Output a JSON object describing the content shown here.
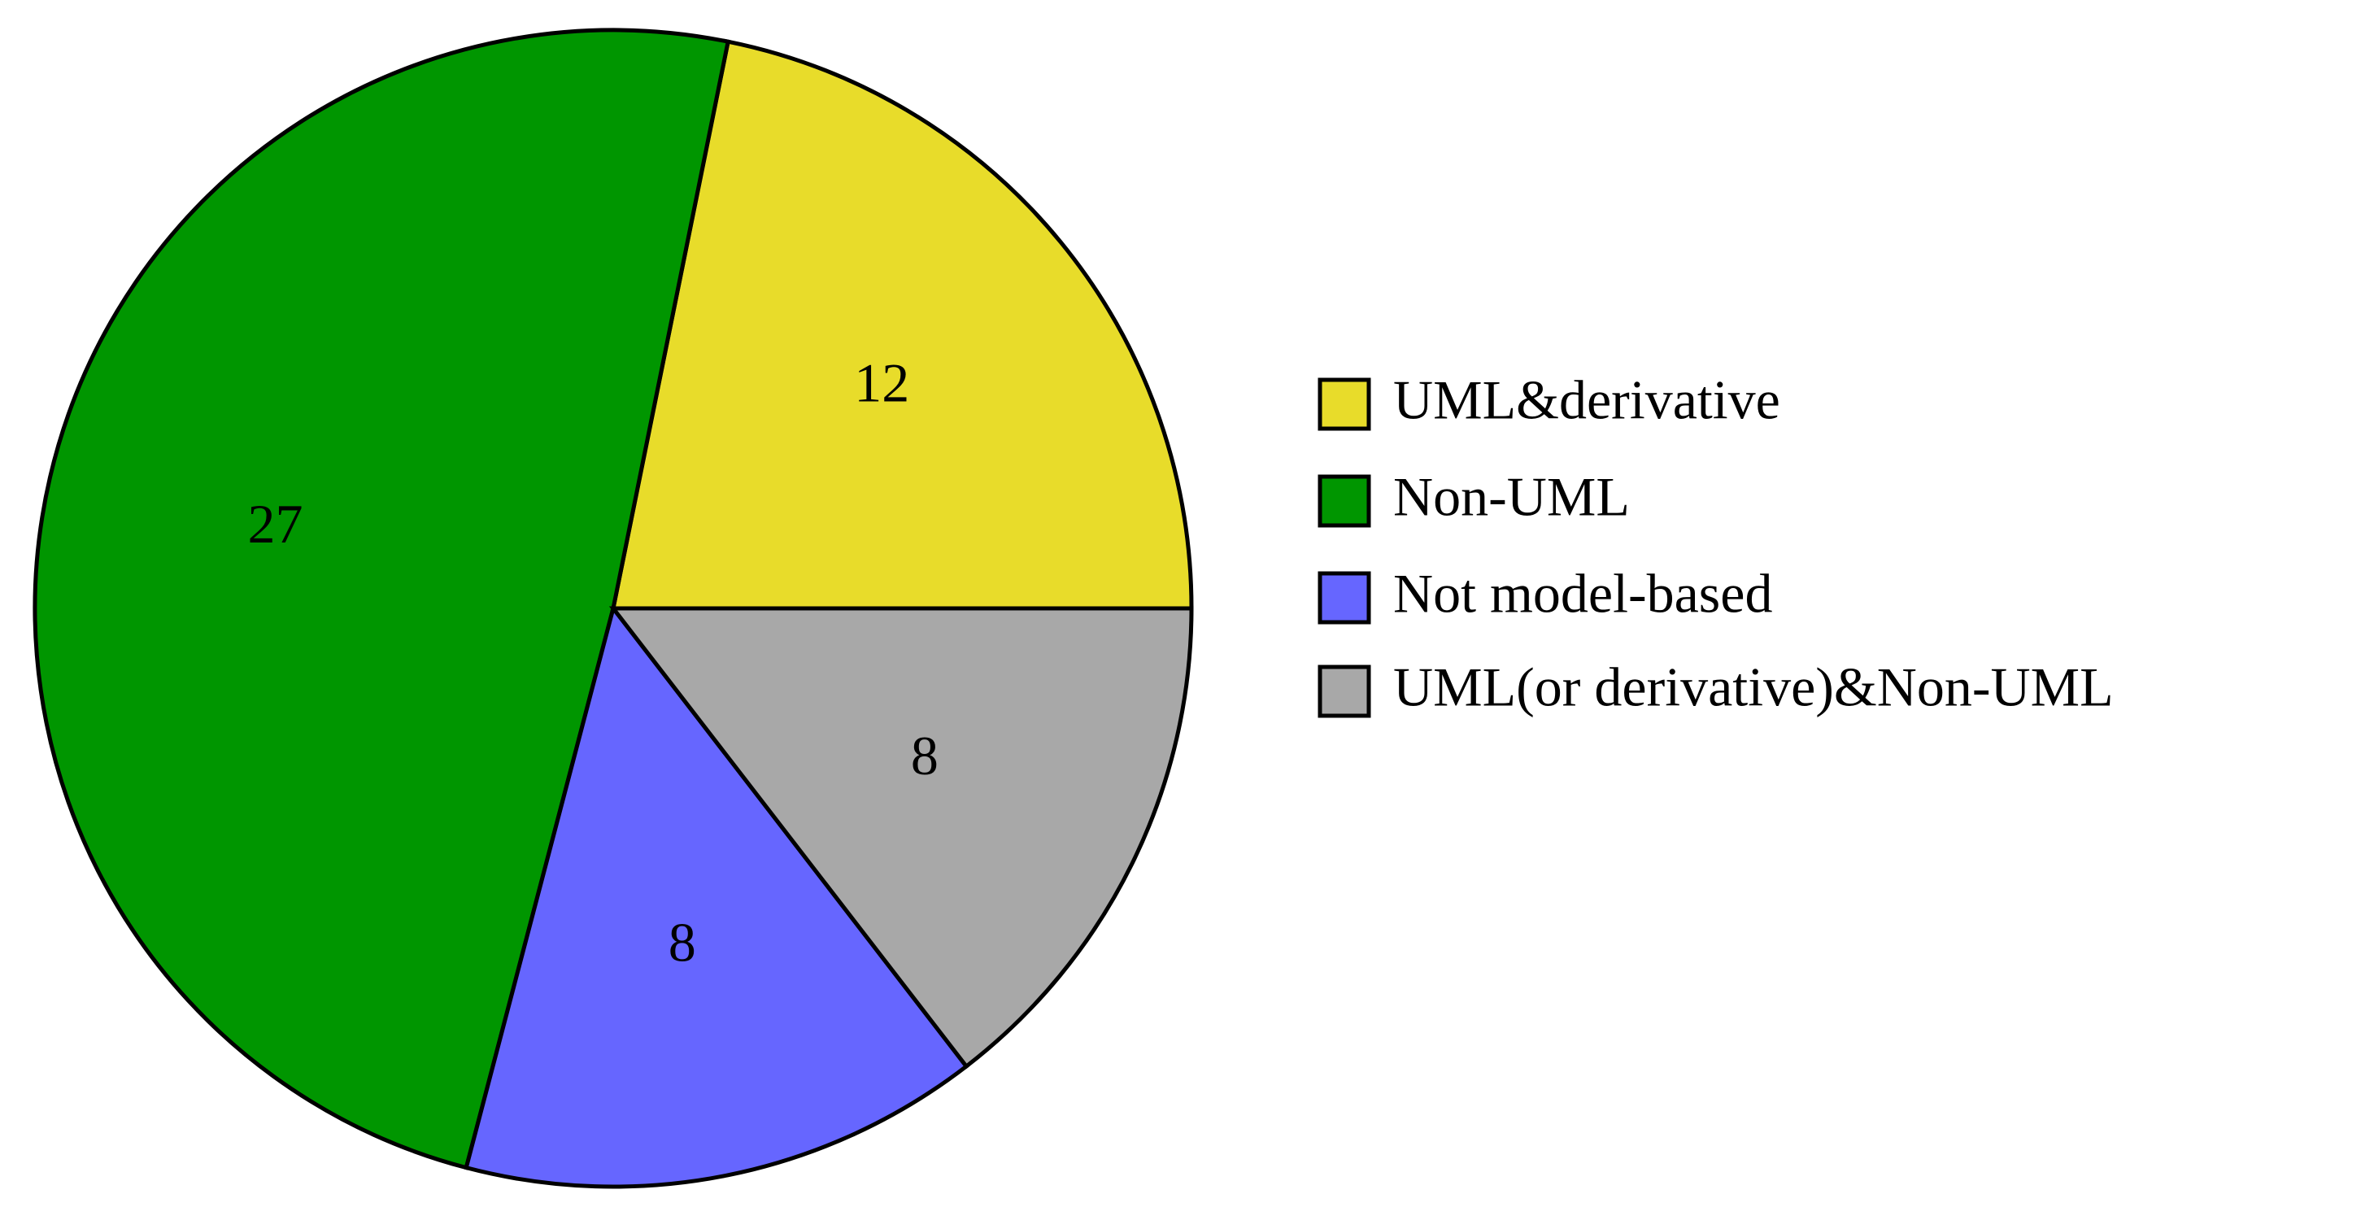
{
  "chart_data": {
    "type": "pie",
    "categories": [
      "UML&derivative",
      "Non-UML",
      "Not model-based",
      "UML(or derivative)&Non-UML"
    ],
    "values": [
      12,
      27,
      8,
      8
    ],
    "colors": [
      "#e8dc2a",
      "#009600",
      "#6666ff",
      "#a8a8a8"
    ],
    "legend": "right"
  }
}
